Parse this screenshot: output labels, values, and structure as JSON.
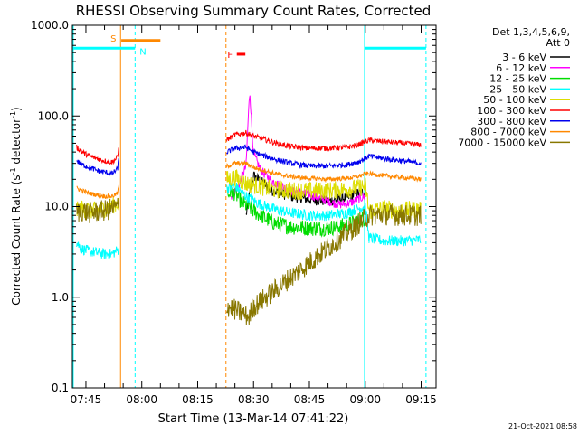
{
  "chart_data": {
    "type": "line",
    "title": "RHESSI Observing Summary Count Rates, Corrected",
    "xlabel": "Start Time (13-Mar-14 07:41:22)",
    "ylabel_main": "Corrected Count Rate (s",
    "ylabel_sup": "-1",
    "ylabel_tail": " detector",
    "ylabel_end": ")",
    "x_start_min": 461.3667,
    "xlim": [
      461.3667,
      559.0
    ],
    "ylim": [
      0.1,
      1000.0
    ],
    "yscale": "log",
    "x_ticks": [
      {
        "t": 465,
        "label": "07:45"
      },
      {
        "t": 480,
        "label": "08:00"
      },
      {
        "t": 495,
        "label": "08:15"
      },
      {
        "t": 510,
        "label": "08:30"
      },
      {
        "t": 525,
        "label": "08:45"
      },
      {
        "t": 540,
        "label": "09:00"
      },
      {
        "t": 555,
        "label": "09:15"
      }
    ],
    "y_ticks": [
      {
        "v": 1000,
        "label": "1000.0"
      },
      {
        "v": 100,
        "label": "100.0"
      },
      {
        "v": 10,
        "label": "10.0"
      },
      {
        "v": 1,
        "label": "1.0"
      },
      {
        "v": 0.1,
        "label": "0.1"
      }
    ],
    "legend": {
      "header1": "Det 1,3,4,5,6,9,",
      "header2": "Att 0",
      "position": "right",
      "entries": [
        {
          "label": "3 - 6 keV",
          "color": "#000000"
        },
        {
          "label": "6 - 12 keV",
          "color": "#ff00ff"
        },
        {
          "label": "12 - 25 keV",
          "color": "#00dd00"
        },
        {
          "label": "25 - 50 keV",
          "color": "#00ffff"
        },
        {
          "label": "50 - 100 keV",
          "color": "#dddd00"
        },
        {
          "label": "100 - 300 keV",
          "color": "#ff0000"
        },
        {
          "label": "300 - 800 keV",
          "color": "#0000ee"
        },
        {
          "label": "800 - 7000 keV",
          "color": "#ff8800"
        },
        {
          "label": "7000 - 15000 keV",
          "color": "#887700"
        }
      ]
    },
    "annotations": {
      "saa_label": "S",
      "saa_color": "#ff8800",
      "saa_start": 474.5,
      "saa_end": 485.0,
      "saa_level": 680,
      "night_label": "N",
      "night_color": "#00ffff",
      "flare_label": "F",
      "flare_color": "#ff0000",
      "flare_start": 505.5,
      "flare_end": 507.8,
      "flare_level": 480
    },
    "vertical_lines": [
      {
        "t": 474.3,
        "color": "#ff8800",
        "dash": false
      },
      {
        "t": 478.2,
        "color": "#00ffff",
        "dash": true
      },
      {
        "t": 502.6,
        "color": "#ff8800",
        "dash": true
      },
      {
        "t": 539.8,
        "color": "#00ffff",
        "dash": false
      },
      {
        "t": 556.3,
        "color": "#00ffff",
        "dash": true
      },
      {
        "t": 461.6,
        "color": "#00ffff",
        "dash": false
      }
    ],
    "night_bars": [
      {
        "from": 461.6,
        "to": 478.2,
        "level": 560
      },
      {
        "from": 539.8,
        "to": 556.3,
        "level": 560
      }
    ],
    "segments": [
      {
        "from": 462.5,
        "to": 474.0
      },
      {
        "from": 502.8,
        "to": 541.0
      },
      {
        "from": 541.0,
        "to": 556.3
      }
    ],
    "series": [
      {
        "name": "3 - 6 keV",
        "color": "#000000",
        "points": [
          [
            508,
            8.0
          ],
          [
            509,
            14
          ],
          [
            510,
            22
          ],
          [
            512,
            19
          ],
          [
            515,
            15
          ],
          [
            520,
            13
          ],
          [
            525,
            12
          ],
          [
            530,
            11.5
          ],
          [
            535,
            12.5
          ],
          [
            538,
            14
          ],
          [
            540,
            14.5
          ]
        ]
      },
      {
        "name": "6 - 12 keV",
        "color": "#ff00ff",
        "points": [
          [
            504,
            13
          ],
          [
            505,
            15
          ],
          [
            506,
            17
          ],
          [
            507,
            22
          ],
          [
            508,
            28
          ],
          [
            508.6,
            100
          ],
          [
            509,
            190
          ],
          [
            509.5,
            80
          ],
          [
            510,
            38
          ],
          [
            512,
            25
          ],
          [
            515,
            19
          ],
          [
            520,
            15
          ],
          [
            525,
            13.5
          ],
          [
            530,
            11.5
          ],
          [
            533,
            10.5
          ],
          [
            536,
            11.0
          ],
          [
            538,
            12
          ],
          [
            540,
            13
          ]
        ]
      },
      {
        "name": "12 - 25 keV",
        "color": "#00dd00",
        "points": [
          [
            503,
            13
          ],
          [
            504,
            15
          ],
          [
            505,
            14
          ],
          [
            507,
            11
          ],
          [
            510,
            9
          ],
          [
            513,
            7.5
          ],
          [
            516,
            6.5
          ],
          [
            520,
            6
          ],
          [
            525,
            5.8
          ],
          [
            530,
            5.8
          ],
          [
            535,
            6.2
          ],
          [
            538,
            7.0
          ],
          [
            540,
            7.5
          ]
        ]
      },
      {
        "name": "25 - 50 keV",
        "color": "#00ffff",
        "points": [
          [
            462.5,
            4.0
          ],
          [
            464,
            3.4
          ],
          [
            466,
            3.2
          ],
          [
            468,
            3.1
          ],
          [
            470,
            3.0
          ],
          [
            472,
            3.0
          ],
          [
            473.5,
            3.3
          ],
          [
            503,
            16
          ],
          [
            505,
            17
          ],
          [
            508,
            13
          ],
          [
            511,
            11
          ],
          [
            515,
            9.5
          ],
          [
            520,
            8.5
          ],
          [
            525,
            8.0
          ],
          [
            530,
            8.0
          ],
          [
            535,
            8.5
          ],
          [
            538,
            9.5
          ],
          [
            540,
            10
          ],
          [
            541,
            4.5
          ],
          [
            545,
            4.2
          ],
          [
            550,
            4.2
          ],
          [
            555,
            4.3
          ]
        ]
      },
      {
        "name": "50 - 100 keV",
        "color": "#dddd00",
        "points": [
          [
            462.5,
            9.0
          ],
          [
            464,
            9.5
          ],
          [
            467,
            9.0
          ],
          [
            470,
            9.5
          ],
          [
            473.5,
            11
          ],
          [
            503,
            20
          ],
          [
            505,
            21
          ],
          [
            508,
            18
          ],
          [
            511,
            17
          ],
          [
            515,
            15.5
          ],
          [
            520,
            15
          ],
          [
            525,
            15
          ],
          [
            530,
            15
          ],
          [
            535,
            15.5
          ],
          [
            538,
            16
          ],
          [
            540,
            17
          ],
          [
            541,
            9
          ],
          [
            545,
            9.5
          ],
          [
            550,
            9
          ],
          [
            555,
            9.5
          ]
        ]
      },
      {
        "name": "100 - 300 keV",
        "color": "#ff0000",
        "points": [
          [
            462.5,
            45
          ],
          [
            464,
            40
          ],
          [
            466,
            36
          ],
          [
            468,
            34
          ],
          [
            470,
            32
          ],
          [
            472,
            31
          ],
          [
            473.5,
            35
          ],
          [
            474,
            50
          ],
          [
            503,
            55
          ],
          [
            505,
            62
          ],
          [
            508,
            65
          ],
          [
            510,
            60
          ],
          [
            513,
            55
          ],
          [
            516,
            50
          ],
          [
            520,
            46
          ],
          [
            525,
            44
          ],
          [
            530,
            44
          ],
          [
            535,
            45
          ],
          [
            538,
            48
          ],
          [
            540,
            52
          ],
          [
            541,
            54
          ],
          [
            545,
            52
          ],
          [
            550,
            50
          ],
          [
            555,
            48
          ]
        ]
      },
      {
        "name": "300 - 800 keV",
        "color": "#0000ee",
        "points": [
          [
            462.5,
            32
          ],
          [
            464,
            29
          ],
          [
            466,
            27
          ],
          [
            468,
            25
          ],
          [
            470,
            24
          ],
          [
            472,
            23
          ],
          [
            473.5,
            26
          ],
          [
            474,
            38
          ],
          [
            503,
            40
          ],
          [
            505,
            44
          ],
          [
            508,
            45
          ],
          [
            510,
            40
          ],
          [
            513,
            36
          ],
          [
            516,
            33
          ],
          [
            520,
            30
          ],
          [
            525,
            28
          ],
          [
            530,
            28
          ],
          [
            535,
            29
          ],
          [
            538,
            31
          ],
          [
            540,
            34
          ],
          [
            541,
            36
          ],
          [
            545,
            34
          ],
          [
            550,
            32
          ],
          [
            555,
            30
          ]
        ]
      },
      {
        "name": "800 - 7000 keV",
        "color": "#ff8800",
        "points": [
          [
            462.5,
            16
          ],
          [
            464,
            15
          ],
          [
            466,
            14
          ],
          [
            468,
            13.5
          ],
          [
            470,
            13
          ],
          [
            472,
            13
          ],
          [
            473.5,
            14
          ],
          [
            474,
            18
          ],
          [
            503,
            28
          ],
          [
            505,
            30
          ],
          [
            508,
            30
          ],
          [
            510,
            27
          ],
          [
            513,
            25
          ],
          [
            516,
            23
          ],
          [
            520,
            21.5
          ],
          [
            525,
            20.5
          ],
          [
            530,
            20
          ],
          [
            535,
            20.5
          ],
          [
            538,
            21.5
          ],
          [
            540,
            23
          ],
          [
            541,
            23
          ],
          [
            545,
            22
          ],
          [
            550,
            21
          ],
          [
            555,
            20
          ]
        ]
      },
      {
        "name": "7000 - 15000 keV",
        "color": "#887700",
        "points": [
          [
            462.5,
            8.5
          ],
          [
            464,
            9.0
          ],
          [
            466,
            8.5
          ],
          [
            468,
            8.8
          ],
          [
            470,
            9.0
          ],
          [
            472,
            9.5
          ],
          [
            473.5,
            10
          ],
          [
            503,
            0.8
          ],
          [
            509,
            0.6
          ],
          [
            509.5,
            0.75
          ],
          [
            541,
            8.0
          ],
          [
            545,
            8.2
          ],
          [
            550,
            8.0
          ],
          [
            555,
            8.0
          ]
        ]
      }
    ]
  },
  "footer": {
    "timestamp": "21-Oct-2021 08:58"
  }
}
